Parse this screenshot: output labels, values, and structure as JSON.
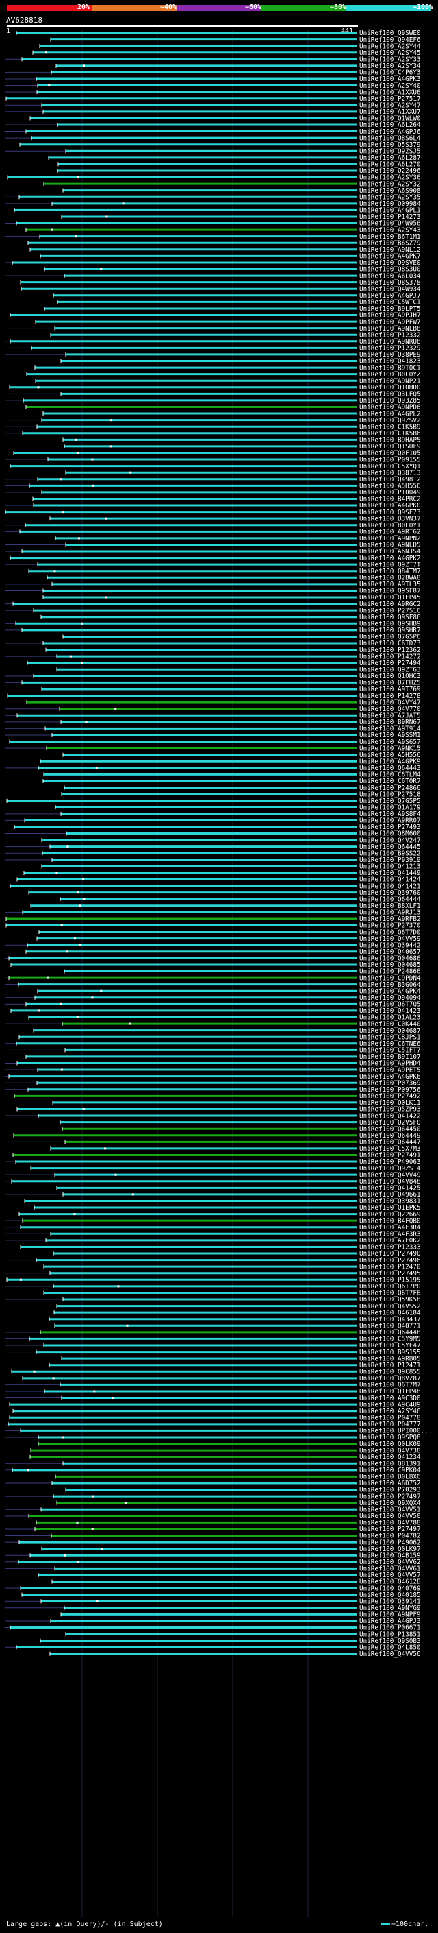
{
  "legend": {
    "labels": [
      "20%",
      "~40%",
      "~60%",
      "~80%",
      "~100%"
    ],
    "colors": [
      "#e8141e",
      "#e67828",
      "#8c2bb0",
      "#18a818",
      "#2ad6d6"
    ]
  },
  "query": {
    "title": "AV628818",
    "start": "1",
    "end": "441"
  },
  "footer": {
    "text": "Large gaps: ▲(in Query)/- (in Subject)",
    "scale_label": "=100char."
  },
  "hits": [
    {
      "id": "UniRef100_Q9SWE0",
      "c": "cyan"
    },
    {
      "id": "UniRef100_Q94EF6",
      "c": "cyan"
    },
    {
      "id": "UniRef100_A2SY44",
      "c": "cyan"
    },
    {
      "id": "UniRef100_A2SY45",
      "c": "cyan"
    },
    {
      "id": "UniRef100_A2SY33",
      "c": "cyan"
    },
    {
      "id": "UniRef100_A2SY34",
      "c": "cyan"
    },
    {
      "id": "UniRef100_C4P6Y3",
      "c": "cyan"
    },
    {
      "id": "UniRef100_A4GPK3",
      "c": "cyan"
    },
    {
      "id": "UniRef100_A2SY40",
      "c": "cyan"
    },
    {
      "id": "UniRef100_A1XXU6",
      "c": "cyan"
    },
    {
      "id": "UniRef100_P27517",
      "c": "cyan"
    },
    {
      "id": "UniRef100_A2SY47",
      "c": "cyan"
    },
    {
      "id": "UniRef100_A1XXU7",
      "c": "cyan"
    },
    {
      "id": "UniRef100_Q1WLW0",
      "c": "cyan"
    },
    {
      "id": "UniRef100_A6L264",
      "c": "cyan"
    },
    {
      "id": "UniRef100_A4GPJ6",
      "c": "cyan"
    },
    {
      "id": "UniRef100_Q8S6L4",
      "c": "cyan"
    },
    {
      "id": "UniRef100_Q5S379",
      "c": "cyan"
    },
    {
      "id": "UniRef100_Q9ZSJ5",
      "c": "cyan"
    },
    {
      "id": "UniRef100_A6L287",
      "c": "cyan"
    },
    {
      "id": "UniRef100_A6L270",
      "c": "cyan"
    },
    {
      "id": "UniRef100_Q22496",
      "c": "cyan"
    },
    {
      "id": "UniRef100_A2SY36",
      "c": "cyan"
    },
    {
      "id": "UniRef100_A2SY32",
      "c": "green"
    },
    {
      "id": "UniRef100_A6S908",
      "c": "cyan"
    },
    {
      "id": "UniRef100_A2SY35",
      "c": "cyan"
    },
    {
      "id": "UniRef100_Q09984",
      "c": "cyan"
    },
    {
      "id": "UniRef100_A4GPL1",
      "c": "cyan"
    },
    {
      "id": "UniRef100_P14273",
      "c": "cyan"
    },
    {
      "id": "UniRef100_Q4W956",
      "c": "cyan"
    },
    {
      "id": "UniRef100_A2SY43",
      "c": "green"
    },
    {
      "id": "UniRef100_B6T1M1",
      "c": "cyan"
    },
    {
      "id": "UniRef100_B6SZ79",
      "c": "cyan"
    },
    {
      "id": "UniRef100_A9NL12",
      "c": "cyan"
    },
    {
      "id": "UniRef100_A4GPK7",
      "c": "cyan"
    },
    {
      "id": "UniRef100_Q9SVE0",
      "c": "cyan"
    },
    {
      "id": "UniRef100_Q8S3U0",
      "c": "cyan"
    },
    {
      "id": "UniRef100_A6L034",
      "c": "cyan"
    },
    {
      "id": "UniRef100_Q8S378",
      "c": "cyan"
    },
    {
      "id": "UniRef100_Q4W934",
      "c": "cyan"
    },
    {
      "id": "UniRef100_A4GPJ7",
      "c": "cyan"
    },
    {
      "id": "UniRef100_C5WTC1",
      "c": "cyan"
    },
    {
      "id": "UniRef100_B9LPT5",
      "c": "cyan"
    },
    {
      "id": "UniRef100_A9PJH7",
      "c": "cyan"
    },
    {
      "id": "UniRef100_A9PFW7",
      "c": "cyan"
    },
    {
      "id": "UniRef100_A9NLB8",
      "c": "cyan"
    },
    {
      "id": "UniRef100_P12332",
      "c": "cyan"
    },
    {
      "id": "UniRef100_A9NRU8",
      "c": "cyan"
    },
    {
      "id": "UniRef100_P12329",
      "c": "cyan"
    },
    {
      "id": "UniRef100_Q38PE9",
      "c": "cyan"
    },
    {
      "id": "UniRef100_Q41823",
      "c": "cyan"
    },
    {
      "id": "UniRef100_B9T0C1",
      "c": "cyan"
    },
    {
      "id": "UniRef100_B0LOYZ",
      "c": "cyan"
    },
    {
      "id": "UniRef100_A9NP21",
      "c": "cyan"
    },
    {
      "id": "UniRef100_Q1OHD0",
      "c": "cyan"
    },
    {
      "id": "UniRef100_Q3LFQ5",
      "c": "cyan"
    },
    {
      "id": "UniRef100_Q93Z85",
      "c": "cyan"
    },
    {
      "id": "UniRef100_A9NPD6",
      "c": "green"
    },
    {
      "id": "UniRef100_A4GPL2",
      "c": "cyan"
    },
    {
      "id": "UniRef100_Q9ZSV2",
      "c": "cyan"
    },
    {
      "id": "UniRef100_C1K5B9",
      "c": "cyan"
    },
    {
      "id": "UniRef100_C1K5B6",
      "c": "cyan"
    },
    {
      "id": "UniRef100_B9HAP5",
      "c": "cyan"
    },
    {
      "id": "UniRef100_Q1SUF9",
      "c": "cyan"
    },
    {
      "id": "UniRef100_Q0F105",
      "c": "cyan"
    },
    {
      "id": "UniRef100_P09155",
      "c": "cyan"
    },
    {
      "id": "UniRef100_C5XYQ1",
      "c": "cyan"
    },
    {
      "id": "UniRef100_Q38713",
      "c": "cyan"
    },
    {
      "id": "UniRef100_Q49812",
      "c": "cyan"
    },
    {
      "id": "UniRef100_A5H556",
      "c": "cyan"
    },
    {
      "id": "UniRef100_P10049",
      "c": "cyan"
    },
    {
      "id": "UniRef100_B4PRC2",
      "c": "cyan"
    },
    {
      "id": "UniRef100_A4GPK0",
      "c": "cyan"
    },
    {
      "id": "UniRef100_Q9SF73",
      "c": "cyan"
    },
    {
      "id": "UniRef100_B3VN37",
      "c": "cyan"
    },
    {
      "id": "UniRef100_B0LOY1",
      "c": "cyan"
    },
    {
      "id": "UniRef100_A9RT62",
      "c": "cyan"
    },
    {
      "id": "UniRef100_A9NPN2",
      "c": "cyan"
    },
    {
      "id": "UniRef100_A9NLD5",
      "c": "cyan"
    },
    {
      "id": "UniRef100_A6NJS4",
      "c": "cyan"
    },
    {
      "id": "UniRef100_A4GPK2",
      "c": "cyan"
    },
    {
      "id": "UniRef100_Q9ZT7T",
      "c": "cyan"
    },
    {
      "id": "UniRef100_Q84TM7",
      "c": "cyan"
    },
    {
      "id": "UniRef100_B2BWA8",
      "c": "cyan"
    },
    {
      "id": "UniRef100_A9TL35",
      "c": "cyan"
    },
    {
      "id": "UniRef100_Q9SF87",
      "c": "cyan"
    },
    {
      "id": "UniRef100_Q1EP45",
      "c": "cyan"
    },
    {
      "id": "UniRef100_A9RGC2",
      "c": "cyan"
    },
    {
      "id": "UniRef100_P27516",
      "c": "cyan"
    },
    {
      "id": "UniRef100_Q9SF86",
      "c": "cyan"
    },
    {
      "id": "UniRef100_Q9SHB9",
      "c": "cyan"
    },
    {
      "id": "UniRef100_Q9SHR7",
      "c": "cyan"
    },
    {
      "id": "UniRef100_Q7G5P6",
      "c": "cyan"
    },
    {
      "id": "UniRef100_C6TD73",
      "c": "cyan"
    },
    {
      "id": "UniRef100_P12362",
      "c": "cyan"
    },
    {
      "id": "UniRef100_P14272",
      "c": "cyan"
    },
    {
      "id": "UniRef100_P27494",
      "c": "cyan"
    },
    {
      "id": "UniRef100_Q9ZTG3",
      "c": "cyan"
    },
    {
      "id": "UniRef100_Q1OHC3",
      "c": "cyan"
    },
    {
      "id": "UniRef100_B7FHZ5",
      "c": "cyan"
    },
    {
      "id": "UniRef100_A9T769",
      "c": "cyan"
    },
    {
      "id": "UniRef100_P14278",
      "c": "cyan"
    },
    {
      "id": "UniRef100_Q4VY47",
      "c": "green"
    },
    {
      "id": "UniRef100_Q4V770",
      "c": "green"
    },
    {
      "id": "UniRef100_A7JAT5",
      "c": "cyan"
    },
    {
      "id": "UniRef100_B9RN67",
      "c": "cyan"
    },
    {
      "id": "UniRef100_A9T914",
      "c": "cyan"
    },
    {
      "id": "UniRef100_A9SSM1",
      "c": "cyan"
    },
    {
      "id": "UniRef100_A9S657",
      "c": "cyan"
    },
    {
      "id": "UniRef100_A9NK15",
      "c": "green"
    },
    {
      "id": "UniRef100_A5H556",
      "c": "cyan"
    },
    {
      "id": "UniRef100_A4GPK9",
      "c": "cyan"
    },
    {
      "id": "UniRef100_Q64443",
      "c": "cyan"
    },
    {
      "id": "UniRef100_C6TLM4",
      "c": "cyan"
    },
    {
      "id": "UniRef100_C6T0R7",
      "c": "cyan"
    },
    {
      "id": "UniRef100_P24866",
      "c": "cyan"
    },
    {
      "id": "UniRef100_P27518",
      "c": "cyan"
    },
    {
      "id": "UniRef100_Q7G5P5",
      "c": "cyan"
    },
    {
      "id": "UniRef100_Q1A179",
      "c": "cyan"
    },
    {
      "id": "UniRef100_A9S8F4",
      "c": "cyan"
    },
    {
      "id": "UniRef100_A9RR07",
      "c": "cyan"
    },
    {
      "id": "UniRef100_P27493",
      "c": "cyan"
    },
    {
      "id": "UniRef100_Q8M600",
      "c": "cyan"
    },
    {
      "id": "UniRef100_Q4V247",
      "c": "cyan"
    },
    {
      "id": "UniRef100_Q64445",
      "c": "cyan"
    },
    {
      "id": "UniRef100_B9SS22",
      "c": "cyan"
    },
    {
      "id": "UniRef100_P93919",
      "c": "cyan"
    },
    {
      "id": "UniRef100_Q41213",
      "c": "cyan"
    },
    {
      "id": "UniRef100_Q41449",
      "c": "cyan"
    },
    {
      "id": "UniRef100_Q41424",
      "c": "cyan"
    },
    {
      "id": "UniRef100_Q41421",
      "c": "cyan"
    },
    {
      "id": "UniRef100_Q39760",
      "c": "cyan"
    },
    {
      "id": "UniRef100_Q64444",
      "c": "cyan"
    },
    {
      "id": "UniRef100_B8XLF1",
      "c": "cyan"
    },
    {
      "id": "UniRef100_A9RJ13",
      "c": "cyan"
    },
    {
      "id": "UniRef100_A9RFB2",
      "c": "green"
    },
    {
      "id": "UniRef100_P27370",
      "c": "cyan"
    },
    {
      "id": "UniRef100_Q6T7D0",
      "c": "cyan"
    },
    {
      "id": "UniRef100_Q4VV59",
      "c": "cyan"
    },
    {
      "id": "UniRef100_Q39442",
      "c": "cyan"
    },
    {
      "id": "UniRef100_Q40657",
      "c": "cyan"
    },
    {
      "id": "UniRef100_Q04686",
      "c": "cyan"
    },
    {
      "id": "UniRef100_Q04685",
      "c": "cyan"
    },
    {
      "id": "UniRef100_P24866",
      "c": "cyan"
    },
    {
      "id": "UniRef100_C9PDN4",
      "c": "green"
    },
    {
      "id": "UniRef100_B3G064",
      "c": "cyan"
    },
    {
      "id": "UniRef100_A4GPK4",
      "c": "cyan"
    },
    {
      "id": "UniRef100_Q94094",
      "c": "cyan"
    },
    {
      "id": "UniRef100_Q6T7Q5",
      "c": "cyan"
    },
    {
      "id": "UniRef100_Q41423",
      "c": "cyan"
    },
    {
      "id": "UniRef100_Q1AL23",
      "c": "cyan"
    },
    {
      "id": "UniRef100_C0K440",
      "c": "green"
    },
    {
      "id": "UniRef100_Q04687",
      "c": "cyan"
    },
    {
      "id": "UniRef100_C8JPS1",
      "c": "cyan"
    },
    {
      "id": "UniRef100_C6TNE6",
      "c": "cyan"
    },
    {
      "id": "UniRef100_C5IFT7",
      "c": "cyan"
    },
    {
      "id": "UniRef100_B9I107",
      "c": "cyan"
    },
    {
      "id": "UniRef100_A9PHD4",
      "c": "cyan"
    },
    {
      "id": "UniRef100_A9PET5",
      "c": "cyan"
    },
    {
      "id": "UniRef100_A4GPK6",
      "c": "cyan"
    },
    {
      "id": "UniRef100_P07369",
      "c": "cyan"
    },
    {
      "id": "UniRef100_P09756",
      "c": "cyan"
    },
    {
      "id": "UniRef100_P27492",
      "c": "green"
    },
    {
      "id": "UniRef100_Q0LK11",
      "c": "cyan"
    },
    {
      "id": "UniRef100_Q5ZP93",
      "c": "cyan"
    },
    {
      "id": "UniRef100_Q41422",
      "c": "cyan"
    },
    {
      "id": "UniRef100_Q2V5F0",
      "c": "cyan"
    },
    {
      "id": "UniRef100_Q64450",
      "c": "green"
    },
    {
      "id": "UniRef100_Q64449",
      "c": "green"
    },
    {
      "id": "UniRef100_Q64447",
      "c": "green"
    },
    {
      "id": "UniRef100_C5X7M3",
      "c": "cyan"
    },
    {
      "id": "UniRef100_P27491",
      "c": "green"
    },
    {
      "id": "UniRef100_P49063",
      "c": "cyan"
    },
    {
      "id": "UniRef100_Q9ZS14",
      "c": "cyan"
    },
    {
      "id": "UniRef100_Q4VV49",
      "c": "cyan"
    },
    {
      "id": "UniRef100_Q4V848",
      "c": "cyan"
    },
    {
      "id": "UniRef100_Q41425",
      "c": "cyan"
    },
    {
      "id": "UniRef100_Q49661",
      "c": "cyan"
    },
    {
      "id": "UniRef100_Q39831",
      "c": "cyan"
    },
    {
      "id": "UniRef100_Q1EPK5",
      "c": "cyan"
    },
    {
      "id": "UniRef100_Q22669",
      "c": "cyan"
    },
    {
      "id": "UniRef100_B4FQB0",
      "c": "green"
    },
    {
      "id": "UniRef100_A4F3R4",
      "c": "cyan"
    },
    {
      "id": "UniRef100_A4F3R3",
      "c": "cyan"
    },
    {
      "id": "UniRef100_A7F0K2",
      "c": "cyan"
    },
    {
      "id": "UniRef100_P12333",
      "c": "cyan"
    },
    {
      "id": "UniRef100_P27490",
      "c": "cyan"
    },
    {
      "id": "UniRef100_P27496",
      "c": "cyan"
    },
    {
      "id": "UniRef100_P12470",
      "c": "cyan"
    },
    {
      "id": "UniRef100_P27495",
      "c": "cyan"
    },
    {
      "id": "UniRef100_P15195",
      "c": "cyan"
    },
    {
      "id": "UniRef100_Q6T7P0",
      "c": "cyan"
    },
    {
      "id": "UniRef100_Q6T7F6",
      "c": "cyan"
    },
    {
      "id": "UniRef100_Q59K58",
      "c": "cyan"
    },
    {
      "id": "UniRef100_Q4VS52",
      "c": "cyan"
    },
    {
      "id": "UniRef100_Q46184",
      "c": "cyan"
    },
    {
      "id": "UniRef100_Q43437",
      "c": "cyan"
    },
    {
      "id": "UniRef100_Q40771",
      "c": "cyan"
    },
    {
      "id": "UniRef100_Q64448",
      "c": "green"
    },
    {
      "id": "UniRef100_C5Y9M5",
      "c": "cyan"
    },
    {
      "id": "UniRef100_C5YF47",
      "c": "cyan"
    },
    {
      "id": "UniRef100_B9S155",
      "c": "cyan"
    },
    {
      "id": "UniRef100_A9RB05",
      "c": "cyan"
    },
    {
      "id": "UniRef100_P12471",
      "c": "cyan"
    },
    {
      "id": "UniRef100_Q9C855",
      "c": "cyan"
    },
    {
      "id": "UniRef100_Q8VZ87",
      "c": "cyan"
    },
    {
      "id": "UniRef100_Q6T7M7",
      "c": "cyan"
    },
    {
      "id": "UniRef100_Q1EP48",
      "c": "cyan"
    },
    {
      "id": "UniRef100_A9C3D0",
      "c": "cyan"
    },
    {
      "id": "UniRef100_A9C4U9",
      "c": "cyan"
    },
    {
      "id": "UniRef100_A2SY46",
      "c": "cyan"
    },
    {
      "id": "UniRef100_P04778",
      "c": "cyan"
    },
    {
      "id": "UniRef100_P04777",
      "c": "cyan"
    },
    {
      "id": "UniRef100_UPI000...",
      "c": "cyan"
    },
    {
      "id": "UniRef100_Q9SPQ8",
      "c": "cyan"
    },
    {
      "id": "UniRef100_Q0LK09",
      "c": "green"
    },
    {
      "id": "UniRef100_Q4V738",
      "c": "green"
    },
    {
      "id": "UniRef100_Q41234",
      "c": "green"
    },
    {
      "id": "UniRef100_Q81391",
      "c": "cyan"
    },
    {
      "id": "UniRef100_C9PK04",
      "c": "cyan"
    },
    {
      "id": "UniRef100_B0LBX6",
      "c": "green"
    },
    {
      "id": "UniRef100_A6D752",
      "c": "cyan"
    },
    {
      "id": "UniRef100_P70293",
      "c": "cyan"
    },
    {
      "id": "UniRef100_P27497",
      "c": "cyan"
    },
    {
      "id": "UniRef100_Q9XQX4",
      "c": "green"
    },
    {
      "id": "UniRef100_Q4VV51",
      "c": "cyan"
    },
    {
      "id": "UniRef100_Q4VV50",
      "c": "green"
    },
    {
      "id": "UniRef100_Q4V788",
      "c": "green"
    },
    {
      "id": "UniRef100_P27497",
      "c": "green"
    },
    {
      "id": "UniRef100_P04782",
      "c": "green"
    },
    {
      "id": "UniRef100_P49062",
      "c": "cyan"
    },
    {
      "id": "UniRef100_Q0LK97",
      "c": "cyan"
    },
    {
      "id": "UniRef100_Q4B159",
      "c": "cyan"
    },
    {
      "id": "UniRef100_Q4VV62",
      "c": "cyan"
    },
    {
      "id": "UniRef100_Q4VV61",
      "c": "cyan"
    },
    {
      "id": "UniRef100_Q4VV57",
      "c": "cyan"
    },
    {
      "id": "UniRef100_Q4612B",
      "c": "cyan"
    },
    {
      "id": "UniRef100_Q40769",
      "c": "cyan"
    },
    {
      "id": "UniRef100_Q40185",
      "c": "cyan"
    },
    {
      "id": "UniRef100_Q39141",
      "c": "cyan"
    },
    {
      "id": "UniRef100_A9NYG9",
      "c": "cyan"
    },
    {
      "id": "UniRef100_A9NPF9",
      "c": "cyan"
    },
    {
      "id": "UniRef100_A4GPJ3",
      "c": "cyan"
    },
    {
      "id": "UniRef100_P06671",
      "c": "cyan"
    },
    {
      "id": "UniRef100_P13851",
      "c": "cyan"
    },
    {
      "id": "UniRef100_Q9S0B3",
      "c": "cyan"
    },
    {
      "id": "UniRef100_Q4L850",
      "c": "cyan"
    },
    {
      "id": "UniRef100_Q4VV56",
      "c": "cyan"
    }
  ]
}
